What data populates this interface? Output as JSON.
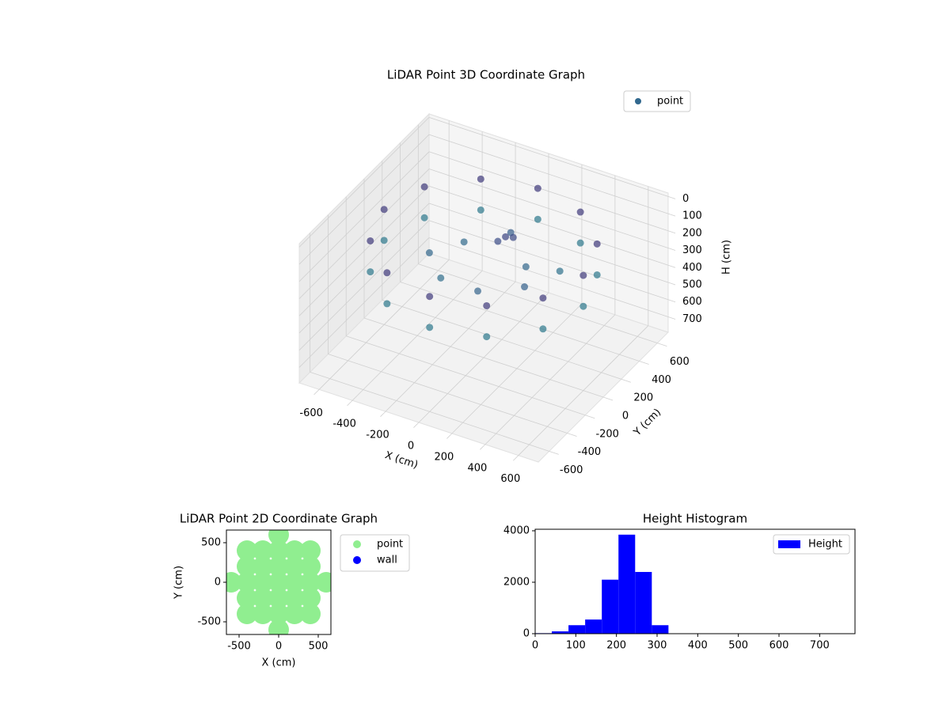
{
  "chart_data": [
    {
      "type": "scatter3d",
      "title": "LiDAR Point 3D Coordinate Graph",
      "xlabel": "X (cm)",
      "ylabel": "Y (cm)",
      "zlabel": "H (cm)",
      "legend": "upper right",
      "colormap": "viridis",
      "xlim": [
        -720,
        720
      ],
      "ylim": [
        -720,
        720
      ],
      "zlim": [
        -20,
        790
      ],
      "zinverted": true,
      "xticks": [
        -600,
        -400,
        -200,
        0,
        200,
        400,
        600
      ],
      "yticks": [
        -600,
        -400,
        -200,
        0,
        200,
        400,
        600
      ],
      "zticks": [
        0,
        100,
        200,
        300,
        400,
        500,
        600,
        700
      ],
      "series": [
        {
          "name": "point",
          "color": "#31688e",
          "x": [
            600,
            520,
            300,
            0,
            -300,
            -520,
            -600,
            -520,
            -300,
            0,
            300,
            520,
            600,
            520,
            300,
            0,
            -300,
            -520,
            -600,
            -520,
            -300,
            0,
            300,
            520,
            200,
            -200,
            100,
            -150,
            300,
            0,
            350,
            -300,
            50,
            80,
            20
          ],
          "y": [
            0,
            300,
            520,
            600,
            520,
            300,
            0,
            -300,
            -520,
            -600,
            -520,
            -300,
            0,
            300,
            520,
            600,
            520,
            300,
            0,
            -300,
            -520,
            -600,
            -520,
            -300,
            100,
            150,
            -250,
            -200,
            -100,
            300,
            200,
            -50,
            150,
            180,
            120
          ],
          "z": [
            120,
            120,
            120,
            120,
            120,
            120,
            120,
            120,
            120,
            120,
            120,
            120,
            300,
            300,
            300,
            300,
            300,
            300,
            300,
            300,
            300,
            300,
            300,
            300,
            250,
            260,
            240,
            270,
            230,
            220,
            280,
            250,
            150,
            160,
            170
          ]
        }
      ]
    },
    {
      "type": "scatter",
      "title": "LiDAR Point 2D Coordinate Graph",
      "xlabel": "X (cm)",
      "ylabel": "Y (cm)",
      "xlim": [
        -660,
        660
      ],
      "ylim": [
        -660,
        660
      ],
      "xticks": [
        -500,
        0,
        500
      ],
      "yticks": [
        -500,
        0,
        500
      ],
      "legend": "outside right",
      "series": [
        {
          "name": "point",
          "color": "#90ee90",
          "x": [
            0,
            -400,
            -200,
            0,
            200,
            400,
            -400,
            -200,
            0,
            200,
            400,
            -600,
            -400,
            -200,
            0,
            200,
            400,
            600,
            -400,
            -200,
            0,
            200,
            400,
            -400,
            -200,
            0,
            200,
            400,
            0
          ],
          "y": [
            -600,
            -400,
            -400,
            -400,
            -400,
            -400,
            -200,
            -200,
            -200,
            -200,
            -200,
            0,
            0,
            0,
            0,
            0,
            0,
            0,
            200,
            200,
            200,
            200,
            200,
            400,
            400,
            400,
            400,
            400,
            600
          ]
        },
        {
          "name": "wall",
          "color": "#0000ff",
          "x": [],
          "y": []
        }
      ]
    },
    {
      "type": "histogram",
      "title": "Height Histogram",
      "xlim": [
        0,
        787
      ],
      "ylim": [
        0,
        4060
      ],
      "xticks": [
        0,
        100,
        200,
        300,
        400,
        500,
        600,
        700
      ],
      "yticks": [
        0,
        2000,
        4000
      ],
      "legend": "upper right",
      "series": [
        {
          "name": "Height",
          "color": "#0000ff",
          "bins": [
            0,
            41,
            82,
            123,
            164,
            205,
            246,
            287,
            328,
            369,
            410,
            451,
            492,
            533,
            574,
            615,
            656,
            697,
            738,
            779
          ],
          "counts": [
            20,
            90,
            330,
            550,
            2100,
            3850,
            2400,
            330,
            5,
            3,
            2,
            2,
            1,
            1,
            1,
            1,
            1,
            2,
            2
          ]
        }
      ]
    }
  ]
}
